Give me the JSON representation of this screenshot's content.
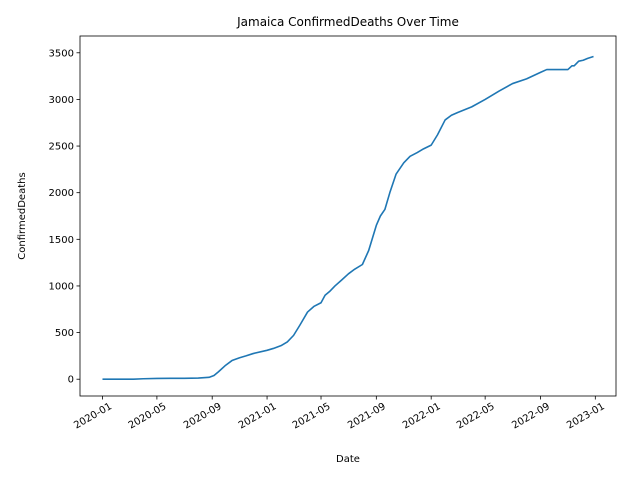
{
  "chart_data": {
    "type": "line",
    "title": "Jamaica  ConfirmedDeaths Over Time",
    "xlabel": "Date",
    "ylabel": "ConfirmedDeaths",
    "x_tick_labels": [
      "2020-01",
      "2020-05",
      "2020-09",
      "2021-01",
      "2021-05",
      "2021-09",
      "2022-01",
      "2022-05",
      "2022-09",
      "2023-01"
    ],
    "y_tick_labels": [
      "0",
      "500",
      "1000",
      "1500",
      "2000",
      "2500",
      "3000",
      "3500"
    ],
    "xlim": [
      "2019-11-12",
      "2023-02-16"
    ],
    "ylim": [
      -180,
      3680
    ],
    "grid": false,
    "legend": "none",
    "series": [
      {
        "color": "#1f77b4",
        "x": [
          "2020-01-01",
          "2020-03-10",
          "2020-04-01",
          "2020-05-01",
          "2020-06-01",
          "2020-07-01",
          "2020-08-01",
          "2020-08-25",
          "2020-09-05",
          "2020-09-15",
          "2020-10-01",
          "2020-10-15",
          "2020-11-01",
          "2020-11-15",
          "2020-12-01",
          "2021-01-01",
          "2021-01-15",
          "2021-02-01",
          "2021-02-15",
          "2021-03-01",
          "2021-03-15",
          "2021-04-01",
          "2021-04-15",
          "2021-05-01",
          "2021-05-10",
          "2021-05-20",
          "2021-06-01",
          "2021-06-15",
          "2021-07-01",
          "2021-07-15",
          "2021-08-01",
          "2021-08-15",
          "2021-09-01",
          "2021-09-10",
          "2021-09-20",
          "2021-10-01",
          "2021-10-15",
          "2021-11-01",
          "2021-11-15",
          "2021-12-01",
          "2021-12-15",
          "2022-01-01",
          "2022-01-15",
          "2022-02-01",
          "2022-02-15",
          "2022-03-01",
          "2022-04-01",
          "2022-05-01",
          "2022-06-01",
          "2022-07-01",
          "2022-08-01",
          "2022-09-01",
          "2022-09-15",
          "2022-10-01",
          "2022-10-15",
          "2022-11-01",
          "2022-11-10",
          "2022-11-15",
          "2022-11-25",
          "2022-12-05",
          "2022-12-15",
          "2022-12-28"
        ],
        "y": [
          0,
          0,
          5,
          8,
          10,
          10,
          12,
          20,
          40,
          80,
          150,
          200,
          230,
          250,
          275,
          310,
          330,
          360,
          400,
          470,
          580,
          720,
          780,
          820,
          900,
          940,
          1000,
          1060,
          1130,
          1180,
          1230,
          1380,
          1650,
          1750,
          1820,
          2000,
          2200,
          2320,
          2390,
          2430,
          2470,
          2510,
          2620,
          2780,
          2830,
          2860,
          2920,
          3000,
          3090,
          3170,
          3220,
          3290,
          3320,
          3320,
          3320,
          3320,
          3360,
          3360,
          3410,
          3420,
          3440,
          3460
        ]
      }
    ]
  }
}
